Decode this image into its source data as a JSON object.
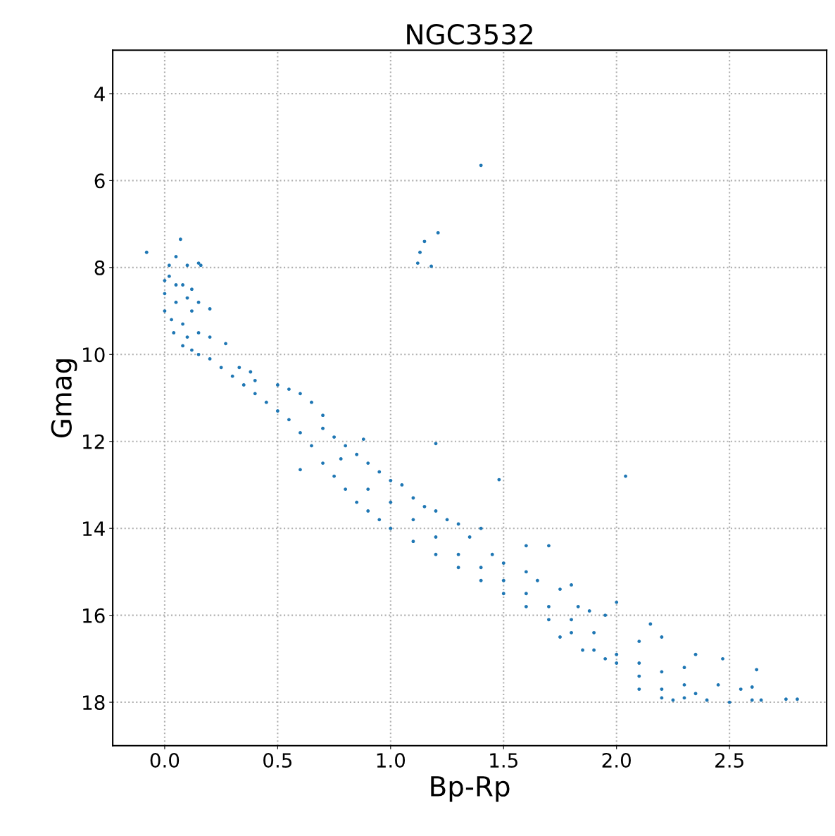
{
  "chart_data": {
    "type": "scatter",
    "title": "NGC3532",
    "xlabel": "Bp-Rp",
    "ylabel": "Gmag",
    "xlim": [
      -0.23,
      2.93
    ],
    "ylim": [
      19.0,
      3.0
    ],
    "xticks": [
      {
        "value": 0,
        "label": "0.0"
      },
      {
        "value": 0.5,
        "label": "0.5"
      },
      {
        "value": 1,
        "label": "1.0"
      },
      {
        "value": 1.5,
        "label": "1.5"
      },
      {
        "value": 2,
        "label": "2.0"
      },
      {
        "value": 2.5,
        "label": "2.5"
      }
    ],
    "yticks": [
      4,
      6,
      8,
      10,
      12,
      14,
      16,
      18
    ],
    "grid": true,
    "marker": "circle",
    "series": [
      {
        "color": "#1f77b4",
        "x": [
          1.4,
          1.21,
          1.15,
          1.13,
          1.12,
          1.18,
          1.2,
          0.6,
          1.48,
          2.04,
          -0.08,
          0.07,
          1.7,
          1.6,
          0.05,
          0.02,
          0.1,
          0.15,
          0.16,
          0.0,
          0.0,
          0.0,
          0.02,
          0.05,
          0.05,
          0.03,
          0.08,
          0.1,
          0.12,
          0.12,
          0.15,
          0.2,
          0.04,
          0.08,
          0.1,
          0.15,
          0.2,
          0.08,
          0.12,
          0.15,
          0.2,
          0.27,
          0.25,
          0.3,
          0.35,
          0.4,
          0.45,
          0.33,
          0.38,
          0.4,
          0.5,
          0.55,
          0.5,
          0.55,
          0.6,
          0.65,
          0.7,
          0.6,
          0.65,
          0.7,
          0.75,
          0.8,
          0.85,
          0.9,
          0.95,
          1.0,
          1.1,
          1.2,
          1.3,
          1.4,
          1.5,
          1.6,
          1.7,
          1.8,
          1.9,
          2.0,
          2.1,
          2.2,
          2.25,
          2.3,
          2.4,
          2.5,
          2.6,
          2.64,
          2.75,
          2.8,
          2.62,
          2.6,
          2.55,
          2.45,
          2.47,
          2.35,
          2.3,
          2.15,
          2.1,
          2.2,
          2.0,
          1.95,
          1.88,
          1.83,
          1.8,
          1.75,
          1.65,
          1.6,
          1.5,
          1.45,
          1.4,
          1.35,
          1.3,
          1.25,
          1.2,
          1.15,
          1.1,
          1.05,
          1.0,
          0.95,
          0.9,
          0.88,
          0.85,
          0.8,
          0.75,
          0.7,
          0.78,
          0.9,
          1.0,
          1.1,
          1.2,
          1.3,
          1.4,
          1.5,
          1.6,
          1.7,
          1.8,
          1.9,
          2.0,
          2.1,
          2.2,
          2.3,
          2.35,
          2.2,
          2.1,
          1.95,
          1.85,
          1.75
        ],
        "values": [
          5.65,
          7.2,
          7.4,
          7.65,
          7.9,
          7.97,
          12.05,
          12.65,
          12.88,
          12.8,
          7.65,
          7.35,
          14.4,
          14.4,
          7.75,
          7.95,
          7.95,
          7.9,
          7.95,
          8.3,
          8.6,
          9.0,
          8.2,
          8.4,
          8.8,
          9.2,
          8.4,
          8.7,
          9.0,
          8.5,
          8.8,
          8.95,
          9.5,
          9.3,
          9.6,
          9.5,
          9.6,
          9.8,
          9.9,
          10.0,
          10.1,
          9.75,
          10.3,
          10.5,
          10.7,
          10.9,
          11.1,
          10.3,
          10.4,
          10.6,
          11.3,
          11.5,
          10.7,
          10.8,
          10.9,
          11.1,
          11.4,
          11.8,
          12.1,
          12.5,
          12.8,
          13.1,
          13.4,
          13.6,
          13.8,
          14.0,
          14.3,
          14.6,
          14.9,
          15.2,
          15.5,
          15.8,
          16.1,
          16.4,
          16.8,
          17.1,
          17.4,
          17.7,
          17.95,
          17.9,
          17.95,
          18.0,
          17.95,
          17.95,
          17.93,
          17.93,
          17.25,
          17.65,
          17.7,
          17.6,
          17.0,
          16.9,
          17.2,
          16.2,
          16.6,
          16.5,
          15.7,
          16.0,
          15.9,
          15.8,
          15.3,
          15.4,
          15.2,
          15.0,
          14.8,
          14.6,
          14.0,
          14.2,
          13.9,
          13.8,
          13.6,
          13.5,
          13.3,
          13.0,
          12.9,
          12.7,
          12.5,
          11.95,
          12.3,
          12.1,
          11.9,
          11.7,
          12.4,
          13.1,
          13.4,
          13.8,
          14.2,
          14.6,
          14.9,
          15.2,
          15.5,
          15.8,
          16.1,
          16.4,
          16.9,
          17.1,
          17.3,
          17.6,
          17.8,
          17.9,
          17.7,
          17.0,
          16.8,
          16.5
        ]
      }
    ]
  }
}
